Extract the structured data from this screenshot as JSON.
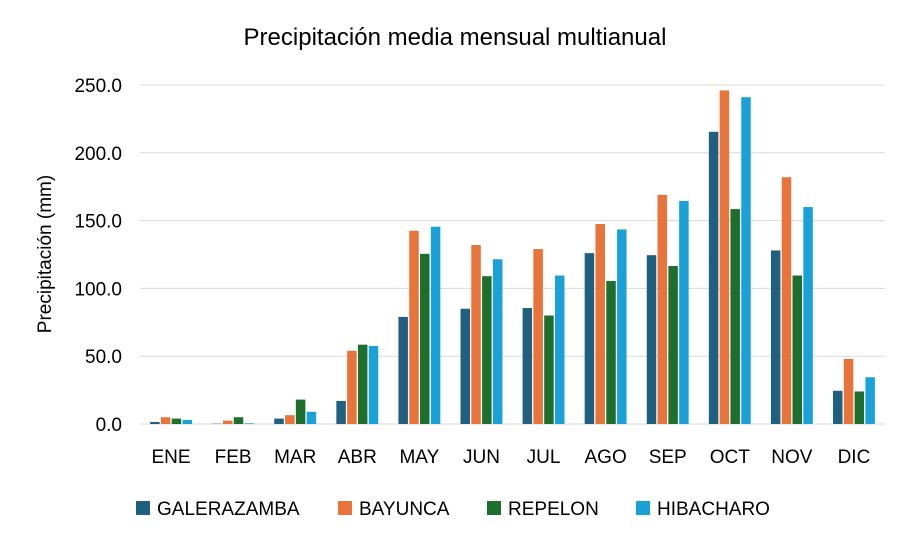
{
  "chart_data": {
    "type": "bar",
    "title": "Precipitación media mensual multianual",
    "xlabel": "",
    "ylabel": "Precipitación (mm)",
    "ylim": [
      0,
      250
    ],
    "yticks": [
      "0.0",
      "50.0",
      "100.0",
      "150.0",
      "200.0",
      "250.0"
    ],
    "grid": true,
    "legend_position": "bottom",
    "categories": [
      "ENE",
      "FEB",
      "MAR",
      "ABR",
      "MAY",
      "JUN",
      "JUL",
      "AGO",
      "SEP",
      "OCT",
      "NOV",
      "DIC"
    ],
    "series": [
      {
        "name": "GALERAZAMBA",
        "color": "#1f5f7f",
        "values": [
          1.5,
          0.2,
          4.0,
          17.0,
          79.0,
          85.0,
          85.5,
          126.0,
          124.5,
          215.5,
          128.0,
          24.5
        ]
      },
      {
        "name": "BAYUNCA",
        "color": "#e8743b",
        "values": [
          5.0,
          2.5,
          6.5,
          54.0,
          142.5,
          132.0,
          129.0,
          147.5,
          169.0,
          246.0,
          182.0,
          48.0
        ]
      },
      {
        "name": "REPELON",
        "color": "#1e6e2e",
        "values": [
          4.0,
          5.0,
          18.0,
          58.5,
          125.5,
          109.0,
          80.0,
          105.5,
          116.5,
          158.5,
          109.5,
          24.0
        ]
      },
      {
        "name": "HIBACHARO",
        "color": "#1aa2d8",
        "values": [
          3.0,
          0.5,
          9.0,
          57.5,
          145.5,
          121.5,
          109.5,
          143.5,
          164.5,
          241.0,
          160.0,
          34.5
        ]
      }
    ]
  }
}
